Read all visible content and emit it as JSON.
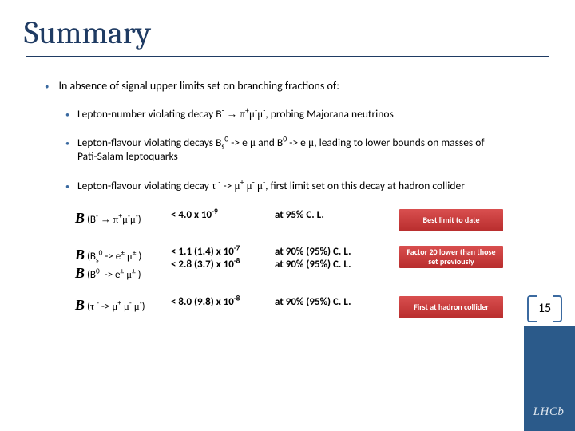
{
  "title": "Summary",
  "top_bullet": "In absence of signal upper limits set on branching fractions of:",
  "sub1_a": "Lepton-number violating decay B",
  "sub1_b": ", probing Majorana neutrinos",
  "sub2_a": "Lepton-flavour violating decays B",
  "sub2_b": " and B",
  "sub2_c": ", leading to lower bounds on masses of Pati-Salam leptoquarks",
  "sub3_a": "Lepton-flavour violating decay ",
  "sub3_b": ", first limit set on this decay at hadron collider",
  "r1_limit": "< 4.0 x 10",
  "r1_cl": "at 95% C. L.",
  "r1_badge": "Best limit to date",
  "r2a_limit": "< 1.1 (1.4) x 10",
  "r2b_limit": "< 2.8 (3.7) x 10",
  "r2_cl_a": "at 90% (95%) C. L.",
  "r2_cl_b": "at 90% (95%) C. L.",
  "r2_badge": "Factor 20 lower than those set previously",
  "r3_limit": "< 8.0 (9.8) x 10",
  "r3_cl": "at 90% (95%) C. L.",
  "r3_badge": "First at hadron collider",
  "pagenum": "15",
  "logo": "LHCb",
  "colors": {
    "accent": "#2b5a8a",
    "badge_top": "#d94f4f",
    "badge_bottom": "#b82d2d",
    "title": "#1f3b63"
  }
}
